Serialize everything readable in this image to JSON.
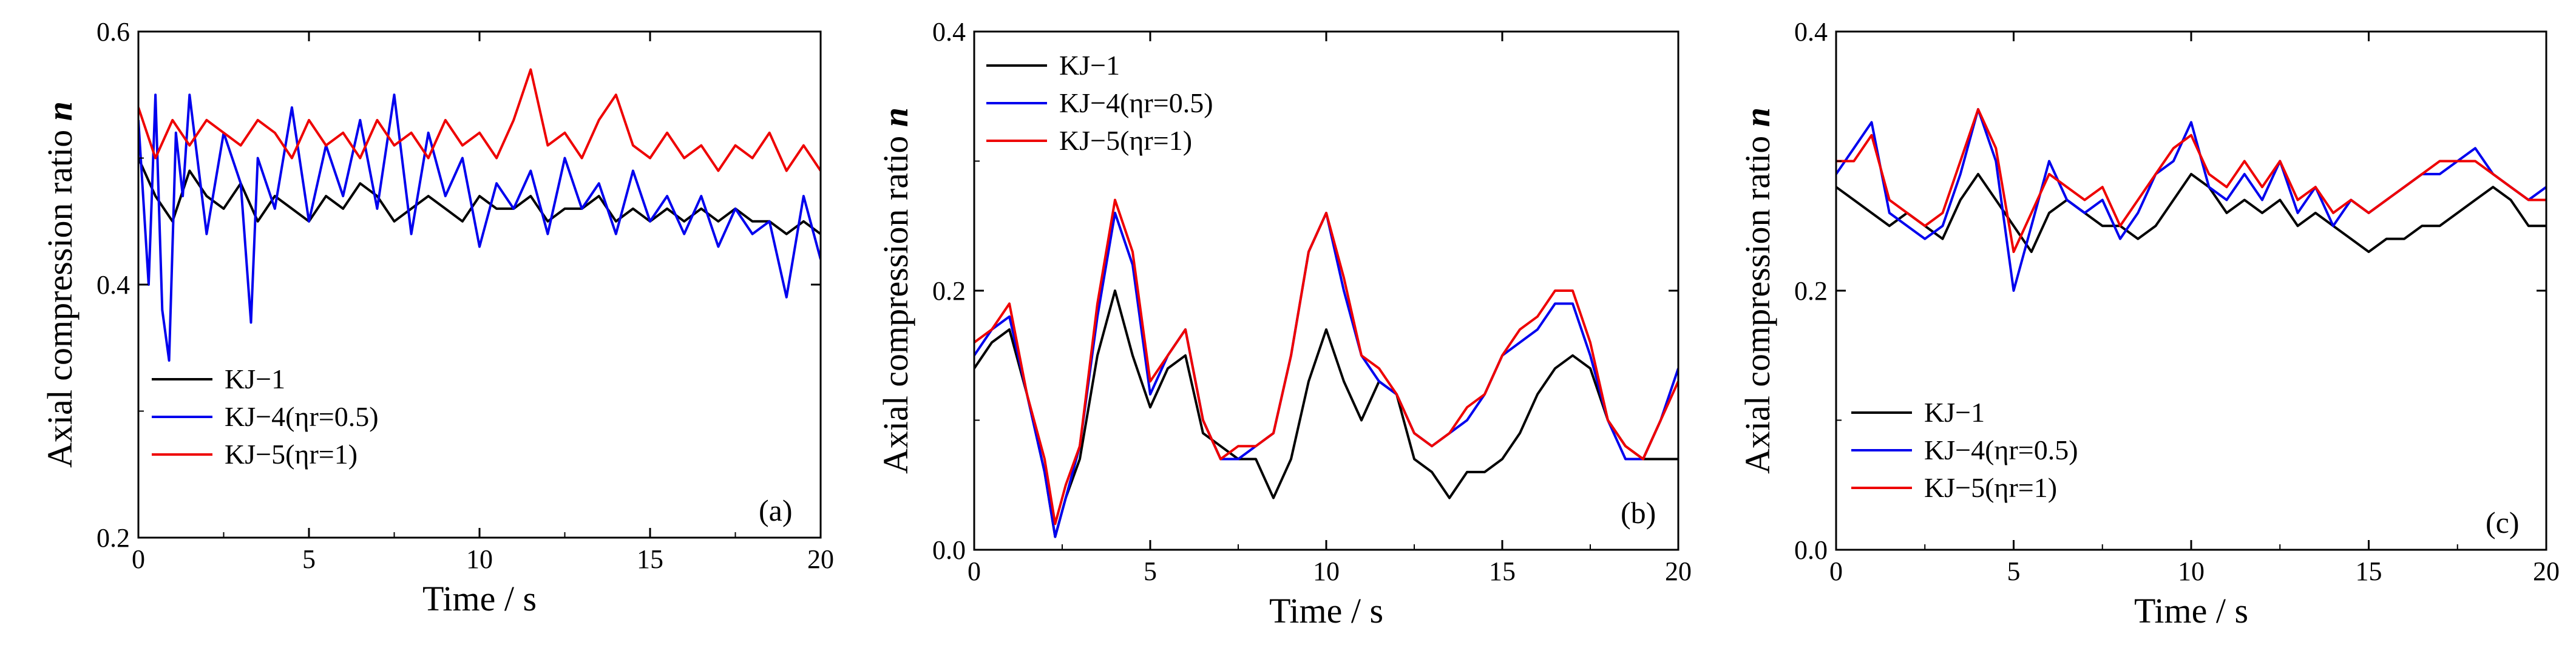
{
  "chart_data": [
    {
      "type": "line",
      "panel_label": "(a)",
      "xlabel": "Time / s",
      "ylabel": "Axial compression ratio",
      "ylabel_var": "n",
      "xlim": [
        0,
        20
      ],
      "ylim": [
        0.2,
        0.6
      ],
      "xticks": [
        0,
        5,
        10,
        15,
        20
      ],
      "yticks": [
        0.2,
        0.4,
        0.6
      ],
      "ytick_labels": [
        "0.2",
        "0.4",
        "0.6"
      ],
      "legend_position": "bottom-left",
      "series": [
        {
          "name": "KJ−1",
          "color": "#000000",
          "x": [
            0,
            0.5,
            1,
            1.5,
            2,
            2.5,
            3,
            3.5,
            4,
            4.5,
            5,
            5.5,
            6,
            6.5,
            7,
            7.5,
            8,
            8.5,
            9,
            9.5,
            10,
            10.5,
            11,
            11.5,
            12,
            12.5,
            13,
            13.5,
            14,
            14.5,
            15,
            15.5,
            16,
            16.5,
            17,
            17.5,
            18,
            18.5,
            19,
            19.5,
            20
          ],
          "y": [
            0.5,
            0.47,
            0.45,
            0.49,
            0.47,
            0.46,
            0.48,
            0.45,
            0.47,
            0.46,
            0.45,
            0.47,
            0.46,
            0.48,
            0.47,
            0.45,
            0.46,
            0.47,
            0.46,
            0.45,
            0.47,
            0.46,
            0.46,
            0.47,
            0.45,
            0.46,
            0.46,
            0.47,
            0.45,
            0.46,
            0.45,
            0.46,
            0.45,
            0.46,
            0.45,
            0.46,
            0.45,
            0.45,
            0.44,
            0.45,
            0.44
          ]
        },
        {
          "name": "KJ−4(ηr=0.5)",
          "color": "#0000ee",
          "x": [
            0,
            0.3,
            0.5,
            0.7,
            0.9,
            1.1,
            1.3,
            1.5,
            2,
            2.5,
            3,
            3.3,
            3.5,
            4,
            4.5,
            5,
            5.5,
            6,
            6.5,
            7,
            7.5,
            8,
            8.5,
            9,
            9.5,
            10,
            10.5,
            11,
            11.5,
            12,
            12.5,
            13,
            13.5,
            14,
            14.5,
            15,
            15.5,
            16,
            16.5,
            17,
            17.5,
            18,
            18.5,
            19,
            19.5,
            20
          ],
          "y": [
            0.53,
            0.4,
            0.55,
            0.38,
            0.34,
            0.52,
            0.47,
            0.55,
            0.44,
            0.52,
            0.48,
            0.37,
            0.5,
            0.46,
            0.54,
            0.45,
            0.51,
            0.47,
            0.53,
            0.46,
            0.55,
            0.44,
            0.52,
            0.47,
            0.5,
            0.43,
            0.48,
            0.46,
            0.49,
            0.44,
            0.5,
            0.46,
            0.48,
            0.44,
            0.49,
            0.45,
            0.47,
            0.44,
            0.47,
            0.43,
            0.46,
            0.44,
            0.45,
            0.39,
            0.47,
            0.42
          ]
        },
        {
          "name": "KJ−5(ηr=1)",
          "color": "#ee0000",
          "x": [
            0,
            0.5,
            1,
            1.5,
            2,
            2.5,
            3,
            3.5,
            4,
            4.5,
            5,
            5.5,
            6,
            6.5,
            7,
            7.5,
            8,
            8.5,
            9,
            9.5,
            10,
            10.5,
            11,
            11.5,
            12,
            12.5,
            13,
            13.5,
            14,
            14.5,
            15,
            15.5,
            16,
            16.5,
            17,
            17.5,
            18,
            18.5,
            19,
            19.5,
            20
          ],
          "y": [
            0.54,
            0.5,
            0.53,
            0.51,
            0.53,
            0.52,
            0.51,
            0.53,
            0.52,
            0.5,
            0.53,
            0.51,
            0.52,
            0.5,
            0.53,
            0.51,
            0.52,
            0.5,
            0.53,
            0.51,
            0.52,
            0.5,
            0.53,
            0.57,
            0.51,
            0.52,
            0.5,
            0.53,
            0.55,
            0.51,
            0.5,
            0.52,
            0.5,
            0.51,
            0.49,
            0.51,
            0.5,
            0.52,
            0.49,
            0.51,
            0.49
          ]
        }
      ]
    },
    {
      "type": "line",
      "panel_label": "(b)",
      "xlabel": "Time / s",
      "ylabel": "Axial compression ratio",
      "ylabel_var": "n",
      "xlim": [
        0,
        20
      ],
      "ylim": [
        0.0,
        0.4
      ],
      "xticks": [
        0,
        5,
        10,
        15,
        20
      ],
      "yticks": [
        0.0,
        0.2,
        0.4
      ],
      "ytick_labels": [
        "0.0",
        "0.2",
        "0.4"
      ],
      "legend_position": "top-left",
      "series": [
        {
          "name": "KJ−1",
          "color": "#000000",
          "x": [
            0,
            0.5,
            1,
            1.5,
            2,
            2.3,
            2.6,
            3,
            3.5,
            4,
            4.5,
            5,
            5.5,
            6,
            6.5,
            7,
            7.5,
            8,
            8.5,
            9,
            9.5,
            10,
            10.5,
            11,
            11.5,
            12,
            12.5,
            13,
            13.5,
            14,
            14.5,
            15,
            15.5,
            16,
            16.5,
            17,
            17.5,
            18,
            18.5,
            19,
            19.5,
            20
          ],
          "y": [
            0.14,
            0.16,
            0.17,
            0.12,
            0.06,
            0.01,
            0.04,
            0.07,
            0.15,
            0.2,
            0.15,
            0.11,
            0.14,
            0.15,
            0.09,
            0.08,
            0.07,
            0.07,
            0.04,
            0.07,
            0.13,
            0.17,
            0.13,
            0.1,
            0.13,
            0.12,
            0.07,
            0.06,
            0.04,
            0.06,
            0.06,
            0.07,
            0.09,
            0.12,
            0.14,
            0.15,
            0.14,
            0.1,
            0.08,
            0.07,
            0.07,
            0.07
          ]
        },
        {
          "name": "KJ−4(ηr=0.5)",
          "color": "#0000ee",
          "x": [
            0,
            0.5,
            1,
            1.5,
            2,
            2.3,
            2.6,
            3,
            3.5,
            4,
            4.5,
            5,
            5.5,
            6,
            6.5,
            7,
            7.5,
            8,
            8.5,
            9,
            9.5,
            10,
            10.5,
            11,
            11.5,
            12,
            12.5,
            13,
            13.5,
            14,
            14.5,
            15,
            15.5,
            16,
            16.5,
            17,
            17.5,
            18,
            18.5,
            19,
            19.5,
            20
          ],
          "y": [
            0.15,
            0.17,
            0.18,
            0.12,
            0.06,
            0.01,
            0.04,
            0.08,
            0.18,
            0.26,
            0.22,
            0.12,
            0.15,
            0.17,
            0.1,
            0.07,
            0.07,
            0.08,
            0.09,
            0.15,
            0.23,
            0.26,
            0.2,
            0.15,
            0.13,
            0.12,
            0.09,
            0.08,
            0.09,
            0.1,
            0.12,
            0.15,
            0.16,
            0.17,
            0.19,
            0.19,
            0.15,
            0.1,
            0.07,
            0.07,
            0.1,
            0.14
          ]
        },
        {
          "name": "KJ−5(ηr=1)",
          "color": "#ee0000",
          "x": [
            0,
            0.5,
            1,
            1.5,
            2,
            2.3,
            2.6,
            3,
            3.5,
            4,
            4.5,
            5,
            5.5,
            6,
            6.5,
            7,
            7.5,
            8,
            8.5,
            9,
            9.5,
            10,
            10.5,
            11,
            11.5,
            12,
            12.5,
            13,
            13.5,
            14,
            14.5,
            15,
            15.5,
            16,
            16.5,
            17,
            17.5,
            18,
            18.5,
            19,
            19.5,
            20
          ],
          "y": [
            0.16,
            0.17,
            0.19,
            0.12,
            0.07,
            0.02,
            0.05,
            0.08,
            0.19,
            0.27,
            0.23,
            0.13,
            0.15,
            0.17,
            0.1,
            0.07,
            0.08,
            0.08,
            0.09,
            0.15,
            0.23,
            0.26,
            0.21,
            0.15,
            0.14,
            0.12,
            0.09,
            0.08,
            0.09,
            0.11,
            0.12,
            0.15,
            0.17,
            0.18,
            0.2,
            0.2,
            0.16,
            0.1,
            0.08,
            0.07,
            0.1,
            0.13
          ]
        }
      ]
    },
    {
      "type": "line",
      "panel_label": "(c)",
      "xlabel": "Time / s",
      "ylabel": "Axial compression ratio",
      "ylabel_var": "n",
      "xlim": [
        0,
        20
      ],
      "ylim": [
        0.0,
        0.4
      ],
      "xticks": [
        0,
        5,
        10,
        15,
        20
      ],
      "yticks": [
        0.0,
        0.2,
        0.4
      ],
      "ytick_labels": [
        "0.0",
        "0.2",
        "0.4"
      ],
      "legend_position": "bottom-left",
      "series": [
        {
          "name": "KJ−1",
          "color": "#000000",
          "x": [
            0,
            0.5,
            1,
            1.5,
            2,
            2.5,
            3,
            3.5,
            4,
            4.5,
            5,
            5.5,
            6,
            6.5,
            7,
            7.5,
            8,
            8.5,
            9,
            9.5,
            10,
            10.5,
            11,
            11.5,
            12,
            12.5,
            13,
            13.5,
            14,
            14.5,
            15,
            15.5,
            16,
            16.5,
            17,
            17.5,
            18,
            18.5,
            19,
            19.5,
            20
          ],
          "y": [
            0.28,
            0.27,
            0.26,
            0.25,
            0.26,
            0.25,
            0.24,
            0.27,
            0.29,
            0.27,
            0.25,
            0.23,
            0.26,
            0.27,
            0.26,
            0.25,
            0.25,
            0.24,
            0.25,
            0.27,
            0.29,
            0.28,
            0.26,
            0.27,
            0.26,
            0.27,
            0.25,
            0.26,
            0.25,
            0.24,
            0.23,
            0.24,
            0.24,
            0.25,
            0.25,
            0.26,
            0.27,
            0.28,
            0.27,
            0.25,
            0.25
          ]
        },
        {
          "name": "KJ−4(ηr=0.5)",
          "color": "#0000ee",
          "x": [
            0,
            0.5,
            1,
            1.5,
            2,
            2.5,
            3,
            3.5,
            4,
            4.5,
            5,
            5.5,
            6,
            6.5,
            7,
            7.5,
            8,
            8.5,
            9,
            9.5,
            10,
            10.5,
            11,
            11.5,
            12,
            12.5,
            13,
            13.5,
            14,
            14.5,
            15,
            15.5,
            16,
            16.5,
            17,
            17.5,
            18,
            18.5,
            19,
            19.5,
            20
          ],
          "y": [
            0.29,
            0.31,
            0.33,
            0.26,
            0.25,
            0.24,
            0.25,
            0.29,
            0.34,
            0.3,
            0.2,
            0.25,
            0.3,
            0.27,
            0.26,
            0.27,
            0.24,
            0.26,
            0.29,
            0.3,
            0.33,
            0.28,
            0.27,
            0.29,
            0.27,
            0.3,
            0.26,
            0.28,
            0.25,
            0.27,
            0.26,
            0.27,
            0.28,
            0.29,
            0.29,
            0.3,
            0.31,
            0.29,
            0.28,
            0.27,
            0.28
          ]
        },
        {
          "name": "KJ−5(ηr=1)",
          "color": "#ee0000",
          "x": [
            0,
            0.5,
            1,
            1.5,
            2,
            2.5,
            3,
            3.5,
            4,
            4.5,
            5,
            5.5,
            6,
            6.5,
            7,
            7.5,
            8,
            8.5,
            9,
            9.5,
            10,
            10.5,
            11,
            11.5,
            12,
            12.5,
            13,
            13.5,
            14,
            14.5,
            15,
            15.5,
            16,
            16.5,
            17,
            17.5,
            18,
            18.5,
            19,
            19.5,
            20
          ],
          "y": [
            0.3,
            0.3,
            0.32,
            0.27,
            0.26,
            0.25,
            0.26,
            0.3,
            0.34,
            0.31,
            0.23,
            0.26,
            0.29,
            0.28,
            0.27,
            0.28,
            0.25,
            0.27,
            0.29,
            0.31,
            0.32,
            0.29,
            0.28,
            0.3,
            0.28,
            0.3,
            0.27,
            0.28,
            0.26,
            0.27,
            0.26,
            0.27,
            0.28,
            0.29,
            0.3,
            0.3,
            0.3,
            0.29,
            0.28,
            0.27,
            0.27
          ]
        }
      ]
    }
  ]
}
